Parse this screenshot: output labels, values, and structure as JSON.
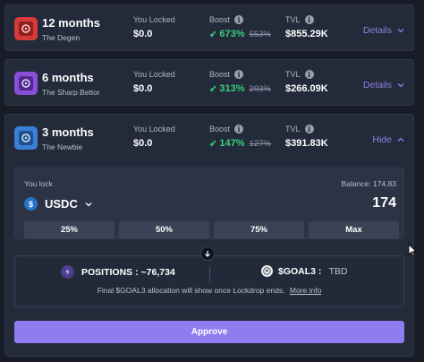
{
  "colors": {
    "background": "#181c26",
    "card": "#232a3a",
    "accent": "#8f7cf0",
    "boost_green": "#39d07a",
    "degen_icon": "#d63a3a",
    "sharp_icon": "#8a4fd8",
    "newbie_icon": "#3a7fd6"
  },
  "vaults": [
    {
      "months": "12 months",
      "tier": "The Degen",
      "locked_label": "You Locked",
      "locked_value": "$0.0",
      "boost_label": "Boost",
      "boost_value": "673%",
      "boost_old": "653%",
      "tvl_label": "TVL",
      "tvl_value": "$855.29K",
      "toggle_label": "Details",
      "icon": "vault-icon"
    },
    {
      "months": "6 months",
      "tier": "The Sharp Bettor",
      "locked_label": "You Locked",
      "locked_value": "$0.0",
      "boost_label": "Boost",
      "boost_value": "313%",
      "boost_old": "293%",
      "tvl_label": "TVL",
      "tvl_value": "$266.09K",
      "toggle_label": "Details",
      "icon": "vault-icon"
    },
    {
      "months": "3 months",
      "tier": "The Newbie",
      "locked_label": "You Locked",
      "locked_value": "$0.0",
      "boost_label": "Boost",
      "boost_value": "147%",
      "boost_old": "127%",
      "tvl_label": "TVL",
      "tvl_value": "$391.83K",
      "toggle_label": "Hide",
      "icon": "vault-icon"
    }
  ],
  "lock_form": {
    "you_lock_label": "You lock",
    "balance_text": "Balance: 174.83",
    "token": "USDC",
    "amount": "174",
    "percent_buttons": [
      "25%",
      "50%",
      "75%",
      "Max"
    ]
  },
  "positions": {
    "positions_text": "POSITIONS : ~76,734",
    "goal_label": "$GOAL3 :",
    "goal_value": "TBD",
    "note": "Final $GOAL3 allocation will show once Lockdrop ends.",
    "more_info": "More info"
  },
  "approve_label": "Approve"
}
